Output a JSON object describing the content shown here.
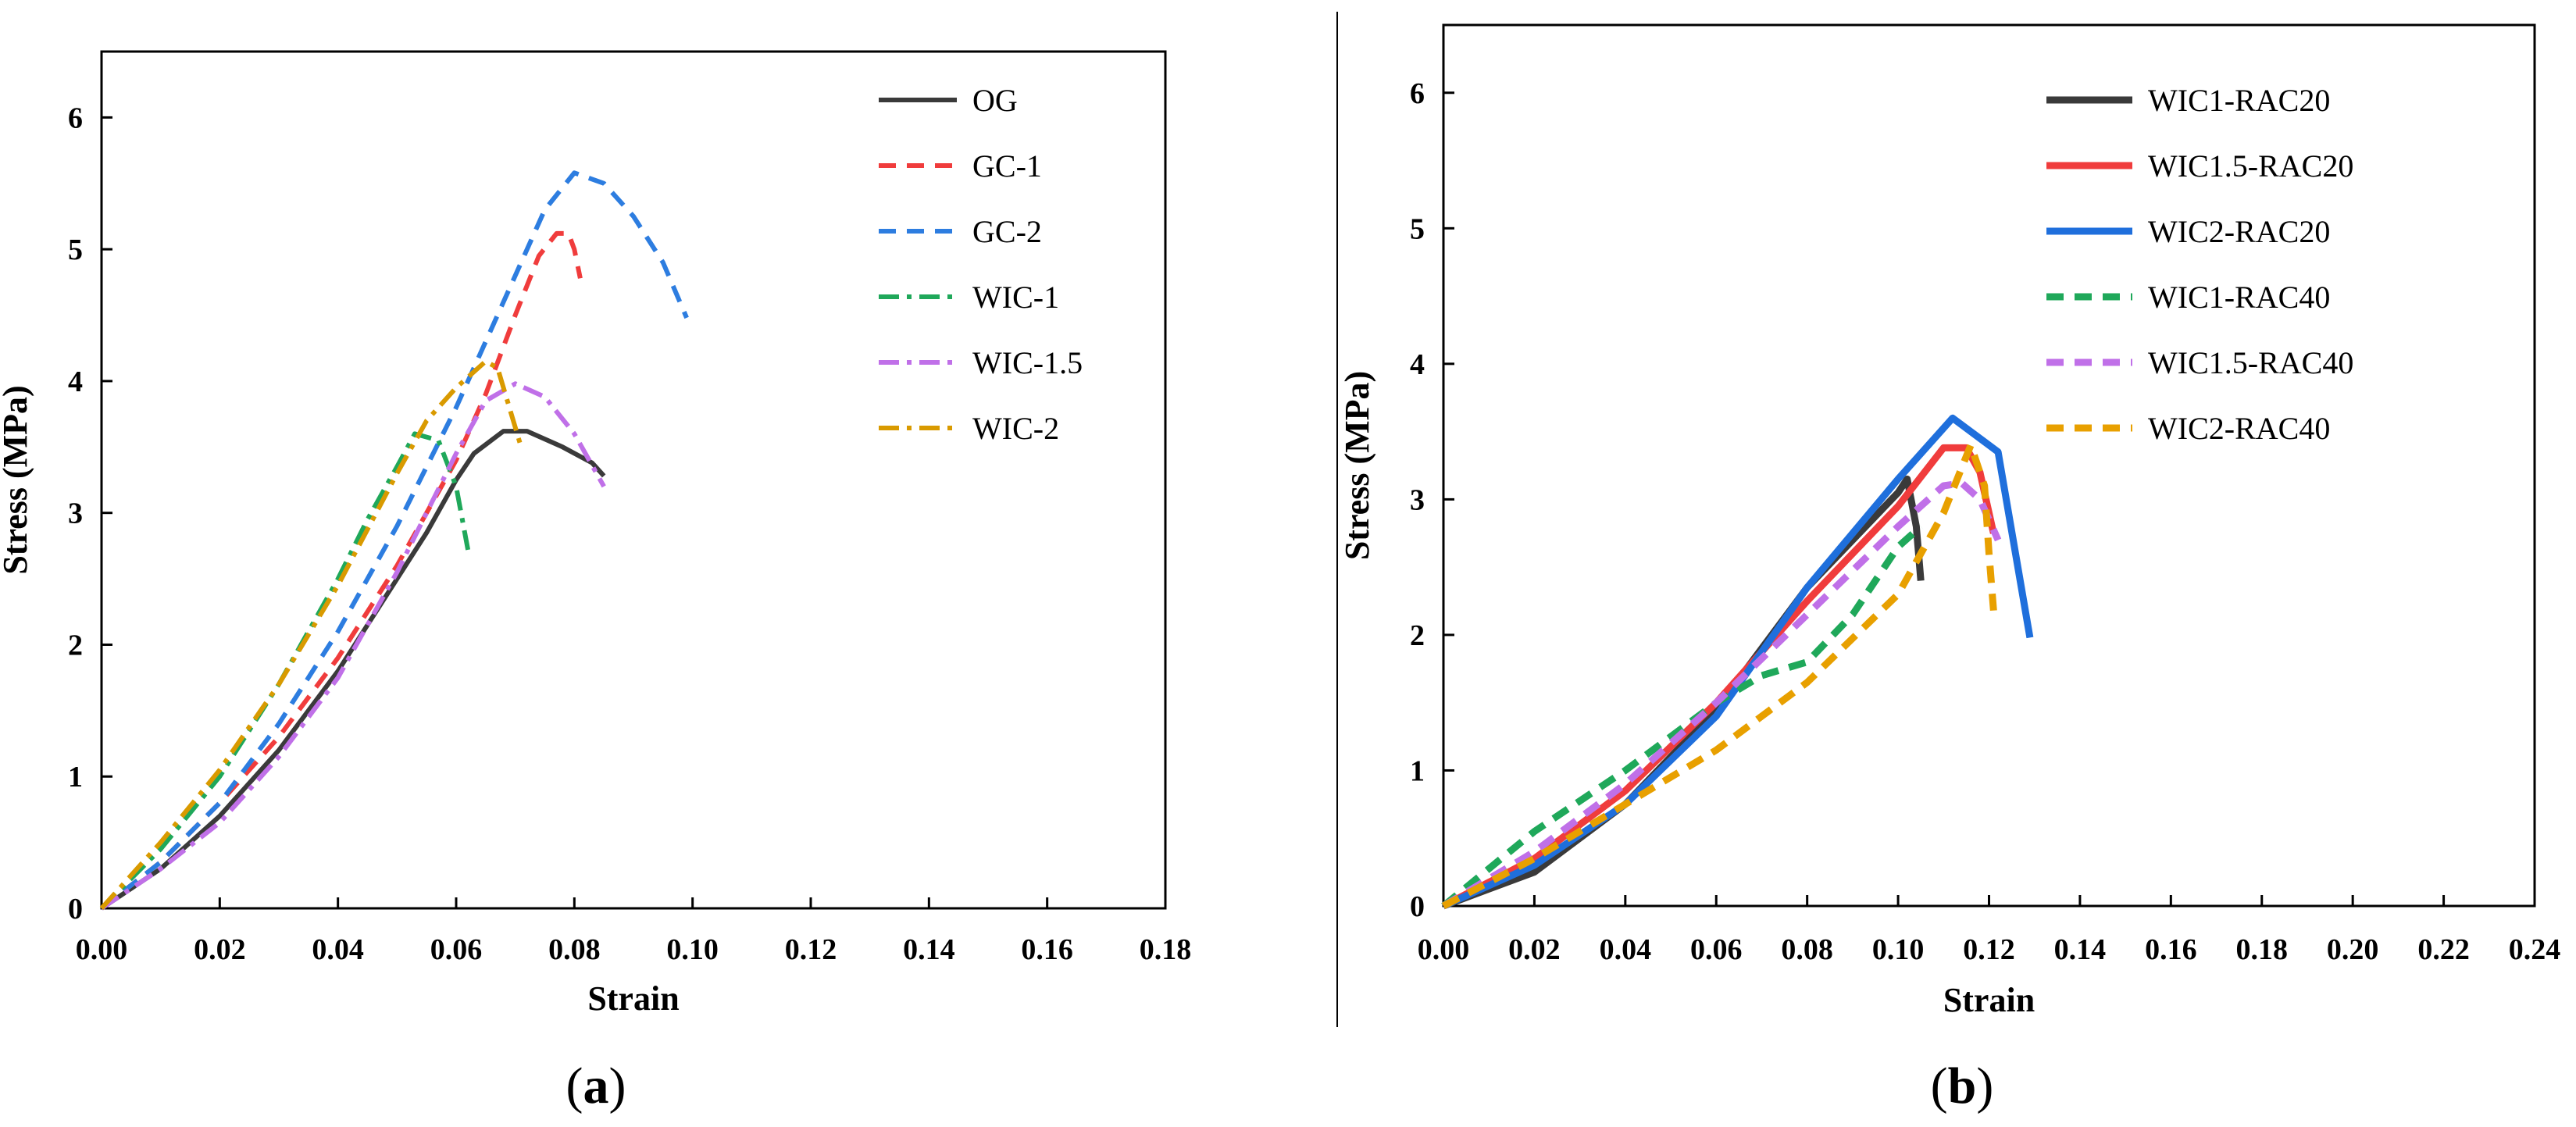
{
  "figure": {
    "captions": [
      "a",
      "b"
    ]
  },
  "chart_data": [
    {
      "type": "line",
      "panel": "a",
      "title": "",
      "xlabel": "Strain",
      "ylabel": "Stress (MPa)",
      "xlim": [
        0,
        0.18
      ],
      "ylim": [
        0,
        6.5
      ],
      "xticks": [
        "0.00",
        "0.02",
        "0.04",
        "0.06",
        "0.08",
        "0.10",
        "0.12",
        "0.14",
        "0.16",
        "0.18"
      ],
      "yticks": [
        "0",
        "1",
        "2",
        "3",
        "4",
        "5",
        "6"
      ],
      "legend_position": "top-right",
      "series": [
        {
          "name": "OG",
          "color": "#3a3a3a",
          "dash": "solid",
          "x": [
            0,
            0.01,
            0.02,
            0.03,
            0.04,
            0.05,
            0.055,
            0.06,
            0.063,
            0.068,
            0.072,
            0.078,
            0.083,
            0.085
          ],
          "y": [
            0,
            0.3,
            0.7,
            1.2,
            1.8,
            2.5,
            2.85,
            3.25,
            3.45,
            3.62,
            3.62,
            3.5,
            3.38,
            3.28
          ]
        },
        {
          "name": "GC-1",
          "color": "#f03c3c",
          "dash": "dash",
          "x": [
            0,
            0.01,
            0.02,
            0.03,
            0.04,
            0.05,
            0.06,
            0.065,
            0.07,
            0.074,
            0.077,
            0.079,
            0.08,
            0.081
          ],
          "y": [
            0,
            0.35,
            0.8,
            1.3,
            1.9,
            2.6,
            3.4,
            3.9,
            4.5,
            4.95,
            5.12,
            5.12,
            5.0,
            4.78
          ]
        },
        {
          "name": "GC-2",
          "color": "#2d7de0",
          "dash": "dash",
          "x": [
            0,
            0.01,
            0.02,
            0.03,
            0.04,
            0.05,
            0.06,
            0.07,
            0.075,
            0.08,
            0.085,
            0.09,
            0.095,
            0.099
          ],
          "y": [
            0,
            0.35,
            0.8,
            1.4,
            2.1,
            2.9,
            3.8,
            4.8,
            5.3,
            5.58,
            5.5,
            5.25,
            4.9,
            4.48
          ]
        },
        {
          "name": "WIC-1",
          "color": "#1fa85a",
          "dash": "dashdot",
          "x": [
            0,
            0.01,
            0.02,
            0.03,
            0.04,
            0.045,
            0.05,
            0.053,
            0.057,
            0.06,
            0.062
          ],
          "y": [
            0,
            0.45,
            1.0,
            1.7,
            2.5,
            2.95,
            3.35,
            3.6,
            3.55,
            3.2,
            2.72
          ]
        },
        {
          "name": "WIC-1.5",
          "color": "#c070e8",
          "dash": "dashdot",
          "x": [
            0,
            0.01,
            0.02,
            0.03,
            0.04,
            0.05,
            0.06,
            0.065,
            0.07,
            0.075,
            0.08,
            0.085
          ],
          "y": [
            0,
            0.3,
            0.65,
            1.15,
            1.75,
            2.55,
            3.45,
            3.85,
            3.98,
            3.88,
            3.6,
            3.2
          ]
        },
        {
          "name": "WIC-2",
          "color": "#d99a00",
          "dash": "dashdot",
          "x": [
            0,
            0.01,
            0.02,
            0.03,
            0.04,
            0.05,
            0.055,
            0.06,
            0.065,
            0.067,
            0.069,
            0.071
          ],
          "y": [
            0,
            0.5,
            1.05,
            1.7,
            2.45,
            3.3,
            3.7,
            3.95,
            4.15,
            4.1,
            3.8,
            3.5
          ]
        }
      ]
    },
    {
      "type": "line",
      "panel": "b",
      "title": "",
      "xlabel": "Strain",
      "ylabel": "Stress (MPa)",
      "xlim": [
        0,
        0.24
      ],
      "ylim": [
        0,
        6.5
      ],
      "xticks": [
        "0.00",
        "0.02",
        "0.04",
        "0.06",
        "0.08",
        "0.10",
        "0.12",
        "0.14",
        "0.16",
        "0.18",
        "0.20",
        "0.22",
        "0.24"
      ],
      "yticks": [
        "0",
        "1",
        "2",
        "3",
        "4",
        "5",
        "6"
      ],
      "legend_position": "top-right",
      "series": [
        {
          "name": "WIC1-RAC20",
          "color": "#3a3a3a",
          "dash": "solid",
          "x": [
            0,
            0.02,
            0.04,
            0.06,
            0.08,
            0.1,
            0.102,
            0.104,
            0.105
          ],
          "y": [
            0,
            0.25,
            0.75,
            1.45,
            2.35,
            3.05,
            3.15,
            2.8,
            2.4
          ]
        },
        {
          "name": "WIC1.5-RAC20",
          "color": "#f03c3c",
          "dash": "solid",
          "x": [
            0,
            0.02,
            0.04,
            0.06,
            0.08,
            0.1,
            0.11,
            0.115,
            0.118,
            0.121
          ],
          "y": [
            0,
            0.35,
            0.85,
            1.5,
            2.25,
            2.95,
            3.38,
            3.38,
            3.2,
            2.75
          ]
        },
        {
          "name": "WIC2-RAC20",
          "color": "#1f6fdc",
          "dash": "solid",
          "x": [
            0,
            0.02,
            0.04,
            0.06,
            0.08,
            0.1,
            0.112,
            0.122,
            0.129
          ],
          "y": [
            0,
            0.3,
            0.75,
            1.4,
            2.35,
            3.15,
            3.6,
            3.35,
            1.98
          ]
        },
        {
          "name": "WIC1-RAC40",
          "color": "#1fa85a",
          "dash": "dash",
          "x": [
            0,
            0.02,
            0.04,
            0.06,
            0.07,
            0.08,
            0.09,
            0.1,
            0.105
          ],
          "y": [
            0,
            0.55,
            1.0,
            1.5,
            1.7,
            1.8,
            2.15,
            2.65,
            2.8
          ]
        },
        {
          "name": "WIC1.5-RAC40",
          "color": "#c070e8",
          "dash": "dash",
          "x": [
            0,
            0.02,
            0.04,
            0.06,
            0.08,
            0.1,
            0.11,
            0.114,
            0.118,
            0.122
          ],
          "y": [
            0,
            0.4,
            0.9,
            1.5,
            2.15,
            2.8,
            3.1,
            3.12,
            3.0,
            2.7
          ]
        },
        {
          "name": "WIC2-RAC40",
          "color": "#e8a000",
          "dash": "dash",
          "x": [
            0,
            0.02,
            0.04,
            0.06,
            0.08,
            0.1,
            0.11,
            0.116,
            0.119,
            0.12,
            0.121
          ],
          "y": [
            0,
            0.35,
            0.75,
            1.15,
            1.65,
            2.3,
            2.9,
            3.4,
            3.1,
            2.6,
            2.18
          ]
        }
      ]
    }
  ]
}
